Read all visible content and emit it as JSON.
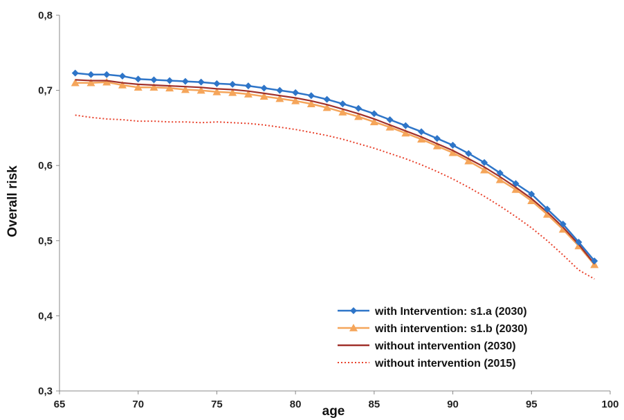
{
  "chart_data": {
    "type": "line",
    "title": "",
    "xlabel": "age",
    "ylabel": "Overall risk",
    "xlim": [
      65,
      100
    ],
    "ylim": [
      0.3,
      0.8
    ],
    "x_ticks": [
      65,
      70,
      75,
      80,
      85,
      90,
      95,
      100
    ],
    "x_tick_labels": [
      "65",
      "70",
      "75",
      "80",
      "85",
      "90",
      "95",
      "100"
    ],
    "y_ticks": [
      0.3,
      0.4,
      0.5,
      0.6,
      0.7,
      0.8
    ],
    "y_tick_labels": [
      "0,3",
      "0,4",
      "0,5",
      "0,6",
      "0,7",
      "0,8"
    ],
    "grid": false,
    "legend_position": "bottom-right",
    "x": [
      66,
      67,
      68,
      69,
      70,
      71,
      72,
      73,
      74,
      75,
      76,
      77,
      78,
      79,
      80,
      81,
      82,
      83,
      84,
      85,
      86,
      87,
      88,
      89,
      90,
      91,
      92,
      93,
      94,
      95,
      96,
      97,
      98,
      99
    ],
    "series": [
      {
        "name": "with Intervention: s1.a (2030)",
        "color": "#2e75c8",
        "marker": "diamond",
        "style": "solid",
        "values": [
          0.723,
          0.721,
          0.721,
          0.719,
          0.715,
          0.714,
          0.713,
          0.712,
          0.711,
          0.709,
          0.708,
          0.706,
          0.703,
          0.7,
          0.697,
          0.693,
          0.688,
          0.682,
          0.676,
          0.669,
          0.661,
          0.653,
          0.645,
          0.636,
          0.627,
          0.616,
          0.604,
          0.59,
          0.576,
          0.562,
          0.542,
          0.522,
          0.498,
          0.473
        ]
      },
      {
        "name": "with intervention: s1.b (2030)",
        "color": "#f5a55a",
        "marker": "triangle",
        "style": "solid",
        "values": [
          0.71,
          0.71,
          0.711,
          0.707,
          0.704,
          0.704,
          0.703,
          0.701,
          0.7,
          0.698,
          0.697,
          0.695,
          0.692,
          0.689,
          0.686,
          0.682,
          0.677,
          0.671,
          0.665,
          0.658,
          0.651,
          0.643,
          0.635,
          0.626,
          0.617,
          0.606,
          0.594,
          0.581,
          0.568,
          0.553,
          0.535,
          0.515,
          0.493,
          0.468
        ]
      },
      {
        "name": "without intervention (2030)",
        "color": "#a0302a",
        "marker": "none",
        "style": "solid",
        "values": [
          0.714,
          0.713,
          0.713,
          0.71,
          0.708,
          0.707,
          0.706,
          0.705,
          0.704,
          0.702,
          0.701,
          0.699,
          0.696,
          0.693,
          0.69,
          0.686,
          0.681,
          0.675,
          0.669,
          0.662,
          0.654,
          0.646,
          0.638,
          0.629,
          0.62,
          0.609,
          0.598,
          0.585,
          0.571,
          0.556,
          0.538,
          0.518,
          0.495,
          0.469
        ]
      },
      {
        "name": "without intervention (2015)",
        "color": "#e8402a",
        "marker": "none",
        "style": "dotted",
        "values": [
          0.667,
          0.664,
          0.662,
          0.661,
          0.659,
          0.659,
          0.658,
          0.658,
          0.657,
          0.658,
          0.657,
          0.656,
          0.654,
          0.651,
          0.648,
          0.644,
          0.64,
          0.635,
          0.629,
          0.623,
          0.616,
          0.609,
          0.601,
          0.592,
          0.582,
          0.571,
          0.559,
          0.546,
          0.532,
          0.517,
          0.5,
          0.481,
          0.461,
          0.449
        ]
      }
    ]
  }
}
